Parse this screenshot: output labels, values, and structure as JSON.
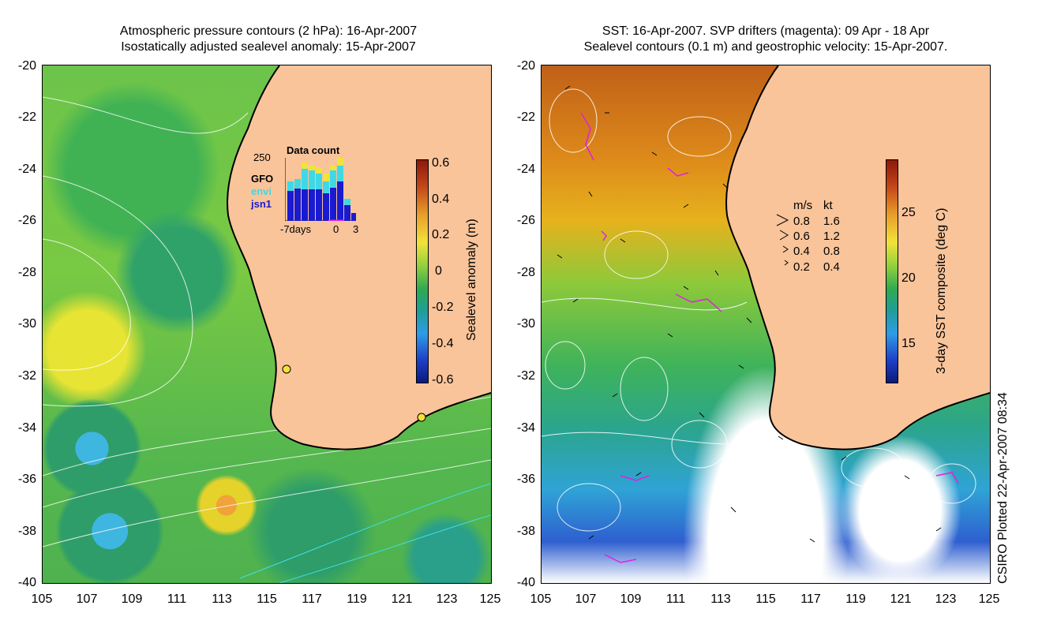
{
  "left": {
    "title_line1": "Atmospheric pressure contours (2 hPa): 16-Apr-2007",
    "title_line2": "Isostatically adjusted sealevel anomaly: 15-Apr-2007",
    "yticks": [
      "-20",
      "-22",
      "-24",
      "-26",
      "-28",
      "-30",
      "-32",
      "-34",
      "-36",
      "-38",
      "-40"
    ],
    "xticks": [
      "105",
      "107",
      "109",
      "111",
      "113",
      "115",
      "117",
      "119",
      "121",
      "123",
      "125"
    ],
    "colorbar": {
      "label": "Sealevel anomaly (m)",
      "ticks": [
        "0.6",
        "0.4",
        "0.2",
        "0",
        "-0.2",
        "-0.4",
        "-0.6"
      ]
    },
    "inset": {
      "title": "Data count",
      "ymax": "250",
      "legend": [
        "GFO",
        "envi",
        "jsn1"
      ],
      "legend_colors": [
        "#f2e23a",
        "#3fd9e6",
        "#1a1ad0"
      ],
      "xlabels": [
        "-7days",
        "0",
        "3"
      ]
    }
  },
  "right": {
    "title_line1": "SST: 16-Apr-2007. SVP drifters (magenta): 09 Apr - 18 Apr",
    "title_line2": "Sealevel contours (0.1 m) and geostrophic velocity: 15-Apr-2007.",
    "yticks": [
      "-20",
      "-22",
      "-24",
      "-26",
      "-28",
      "-30",
      "-32",
      "-34",
      "-36",
      "-38",
      "-40"
    ],
    "xticks": [
      "105",
      "107",
      "109",
      "111",
      "113",
      "115",
      "117",
      "119",
      "121",
      "123",
      "125"
    ],
    "colorbar": {
      "label": "3-day SST composite (deg C)",
      "ticks": [
        "25",
        "20",
        "15"
      ]
    },
    "velocity_legend": {
      "header_ms": "m/s",
      "header_kt": "kt",
      "rows": [
        {
          "ms": "0.8",
          "kt": "1.6"
        },
        {
          "ms": "0.6",
          "kt": "1.2"
        },
        {
          "ms": "0.4",
          "kt": "0.8"
        },
        {
          "ms": "0.2",
          "kt": "0.4"
        }
      ]
    }
  },
  "footer": "CSIRO Plotted 22-Apr-2007 08:34",
  "colors": {
    "land": "#f9c49a",
    "drifter": "#e020e0"
  }
}
